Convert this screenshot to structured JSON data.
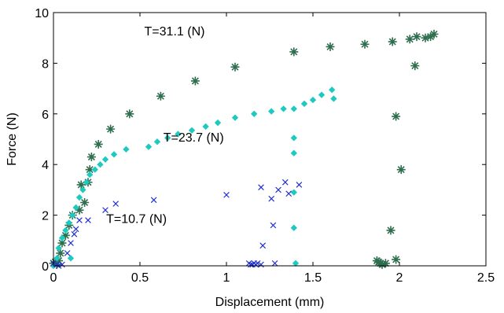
{
  "chart_data": {
    "type": "scatter",
    "xlabel": "Displacement (mm)",
    "ylabel": "Force (N)",
    "xlim": [
      0,
      2.5
    ],
    "ylim": [
      0,
      10
    ],
    "xticks": [
      0,
      0.5,
      1,
      1.5,
      2,
      2.5
    ],
    "xtick_labels": [
      "0",
      "0.5",
      "1",
      "1.5",
      "2",
      "2.5"
    ],
    "yticks": [
      0,
      2,
      4,
      6,
      8,
      10
    ],
    "ytick_labels": [
      "0",
      "2",
      "4",
      "6",
      "8",
      "10"
    ],
    "grid": false,
    "legend": "none",
    "annotations": [
      {
        "text": "T=31.1 (N)",
        "x": 0.7,
        "y": 9.1
      },
      {
        "text": "T=23.7 (N)",
        "x": 0.81,
        "y": 4.9
      },
      {
        "text": "T=10.7 (N)",
        "x": 0.48,
        "y": 1.7
      }
    ],
    "series": [
      {
        "marker": "star",
        "color": "#2e6e4e",
        "points": [
          [
            0.0,
            0.1
          ],
          [
            0.01,
            0.15
          ],
          [
            0.02,
            0.05
          ],
          [
            0.03,
            0.2
          ],
          [
            0.04,
            0.5
          ],
          [
            0.05,
            0.9
          ],
          [
            0.07,
            1.2
          ],
          [
            0.09,
            1.6
          ],
          [
            0.11,
            2.0
          ],
          [
            0.15,
            2.2
          ],
          [
            0.16,
            3.2
          ],
          [
            0.18,
            2.5
          ],
          [
            0.2,
            3.3
          ],
          [
            0.21,
            3.8
          ],
          [
            0.22,
            4.3
          ],
          [
            0.26,
            4.8
          ],
          [
            0.33,
            5.4
          ],
          [
            0.44,
            6.0
          ],
          [
            0.62,
            6.7
          ],
          [
            0.82,
            7.3
          ],
          [
            1.05,
            7.85
          ],
          [
            1.39,
            8.45
          ],
          [
            1.6,
            8.65
          ],
          [
            1.8,
            8.75
          ],
          [
            1.96,
            8.85
          ],
          [
            2.06,
            8.95
          ],
          [
            2.1,
            9.05
          ],
          [
            2.15,
            9.0
          ],
          [
            2.18,
            9.05
          ],
          [
            2.2,
            9.15
          ],
          [
            2.09,
            7.9
          ],
          [
            1.98,
            5.9
          ],
          [
            2.01,
            3.8
          ],
          [
            1.95,
            1.4
          ],
          [
            1.98,
            0.25
          ],
          [
            1.87,
            0.2
          ],
          [
            1.88,
            0.15
          ],
          [
            1.89,
            0.1
          ],
          [
            1.9,
            0.05
          ],
          [
            1.92,
            0.1
          ]
        ]
      },
      {
        "marker": "diamond",
        "color": "#1ec9c0",
        "points": [
          [
            0.0,
            0.0
          ],
          [
            0.02,
            0.3
          ],
          [
            0.03,
            0.7
          ],
          [
            0.05,
            1.1
          ],
          [
            0.07,
            1.4
          ],
          [
            0.09,
            1.7
          ],
          [
            0.11,
            2.0
          ],
          [
            0.13,
            2.3
          ],
          [
            0.15,
            2.7
          ],
          [
            0.17,
            3.0
          ],
          [
            0.19,
            3.3
          ],
          [
            0.21,
            3.6
          ],
          [
            0.24,
            3.8
          ],
          [
            0.27,
            4.0
          ],
          [
            0.3,
            4.2
          ],
          [
            0.35,
            4.4
          ],
          [
            0.42,
            4.6
          ],
          [
            0.55,
            4.7
          ],
          [
            0.6,
            4.9
          ],
          [
            0.66,
            5.05
          ],
          [
            0.72,
            5.2
          ],
          [
            0.8,
            5.35
          ],
          [
            0.88,
            5.5
          ],
          [
            0.95,
            5.65
          ],
          [
            1.05,
            5.85
          ],
          [
            1.16,
            6.0
          ],
          [
            1.26,
            6.1
          ],
          [
            1.33,
            6.2
          ],
          [
            1.39,
            6.2
          ],
          [
            1.45,
            6.4
          ],
          [
            1.5,
            6.55
          ],
          [
            1.55,
            6.75
          ],
          [
            1.61,
            6.95
          ],
          [
            1.62,
            6.6
          ],
          [
            1.39,
            5.05
          ],
          [
            1.39,
            4.45
          ],
          [
            1.39,
            2.9
          ],
          [
            1.39,
            1.5
          ],
          [
            1.4,
            0.1
          ],
          [
            0.1,
            0.3
          ]
        ]
      },
      {
        "marker": "x",
        "color": "#1f2fd0",
        "points": [
          [
            0.0,
            0.1
          ],
          [
            0.02,
            0.05
          ],
          [
            0.03,
            0.0
          ],
          [
            0.05,
            0.05
          ],
          [
            0.08,
            0.5
          ],
          [
            0.1,
            0.9
          ],
          [
            0.12,
            1.25
          ],
          [
            0.13,
            1.45
          ],
          [
            0.15,
            1.8
          ],
          [
            0.2,
            1.8
          ],
          [
            0.3,
            2.2
          ],
          [
            0.36,
            2.45
          ],
          [
            0.58,
            2.6
          ],
          [
            1.0,
            2.8
          ],
          [
            1.2,
            3.1
          ],
          [
            1.26,
            2.65
          ],
          [
            1.3,
            3.0
          ],
          [
            1.34,
            3.3
          ],
          [
            1.42,
            3.2
          ],
          [
            1.36,
            2.85
          ],
          [
            1.27,
            1.6
          ],
          [
            1.21,
            0.8
          ],
          [
            1.13,
            0.1
          ],
          [
            1.15,
            0.05
          ],
          [
            1.16,
            0.1
          ],
          [
            1.17,
            0.05
          ],
          [
            1.18,
            0.1
          ],
          [
            1.14,
            0.05
          ],
          [
            1.2,
            0.05
          ],
          [
            1.28,
            0.1
          ]
        ]
      }
    ]
  }
}
